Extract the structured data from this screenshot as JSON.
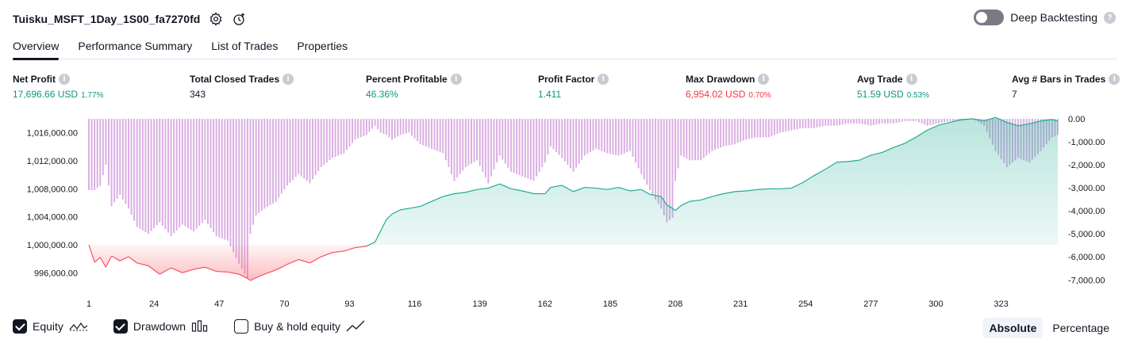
{
  "header": {
    "title": "Tuisku_MSFT_1Day_1S00_fa7270fd",
    "deep_backtesting_label": "Deep Backtesting"
  },
  "tabs": [
    {
      "label": "Overview",
      "active": true
    },
    {
      "label": "Performance Summary",
      "active": false
    },
    {
      "label": "List of Trades",
      "active": false
    },
    {
      "label": "Properties",
      "active": false
    }
  ],
  "metrics": {
    "net_profit": {
      "label": "Net Profit",
      "value": "17,696.66 USD",
      "pct": "1.77%"
    },
    "total_closed_trades": {
      "label": "Total Closed Trades",
      "value": "343"
    },
    "percent_profitable": {
      "label": "Percent Profitable",
      "value": "46.36%"
    },
    "profit_factor": {
      "label": "Profit Factor",
      "value": "1.411"
    },
    "max_drawdown": {
      "label": "Max Drawdown",
      "value": "6,954.02 USD",
      "pct": "0.70%"
    },
    "avg_trade": {
      "label": "Avg Trade",
      "value": "51.59 USD",
      "pct": "0.53%"
    },
    "avg_bars": {
      "label": "Avg # Bars in Trades",
      "value": "7"
    }
  },
  "legend": {
    "equity_label": "Equity",
    "drawdown_label": "Drawdown",
    "buy_hold_label": "Buy & hold equity",
    "equity_checked": true,
    "drawdown_checked": true,
    "buy_hold_checked": false
  },
  "modes": {
    "absolute": "Absolute",
    "percentage": "Percentage",
    "active": "absolute"
  },
  "colors": {
    "profit_line": "#22ab94",
    "loss_line": "#f7525f",
    "profit_fill": "#22ab94",
    "loss_fill": "#f7525f",
    "drawdown_bar": "#ce93d8",
    "positive_text": "#089981",
    "negative_text": "#f23645"
  },
  "chart_data": {
    "type": "area",
    "x_ticks": [
      1,
      24,
      47,
      70,
      93,
      116,
      139,
      162,
      185,
      208,
      231,
      254,
      277,
      300,
      323
    ],
    "left_axis_ticks": [
      "1,016,000.00",
      "1,012,000.00",
      "1,008,000.00",
      "1,004,000.00",
      "1,000,000.00",
      "996,000.00"
    ],
    "right_axis_ticks": [
      "0.00",
      "-1,000.00",
      "-2,000.00",
      "-3,000.00",
      "-4,000.00",
      "-5,000.00",
      "-6,000.00",
      "-7,000.00"
    ],
    "equity_ylim": [
      994000,
      1018000
    ],
    "drawdown_ylim": [
      -7300,
      0
    ],
    "baseline": 1000000,
    "equity_x": [
      1,
      3,
      5,
      7,
      9,
      12,
      15,
      18,
      22,
      26,
      30,
      34,
      38,
      42,
      46,
      50,
      54,
      57,
      58,
      60,
      63,
      67,
      71,
      75,
      79,
      83,
      87,
      91,
      95,
      99,
      102,
      104,
      106,
      108,
      111,
      114,
      118,
      122,
      126,
      130,
      134,
      138,
      142,
      146,
      150,
      154,
      158,
      162,
      164,
      168,
      172,
      176,
      180,
      184,
      188,
      192,
      196,
      199,
      203,
      205,
      207,
      208,
      210,
      213,
      217,
      221,
      225,
      229,
      233,
      237,
      241,
      245,
      249,
      253,
      257,
      261,
      265,
      269,
      273,
      277,
      281,
      285,
      289,
      293,
      297,
      301,
      305,
      309,
      313,
      317,
      321,
      325,
      329,
      333,
      337,
      341,
      343
    ],
    "equity_y": [
      1000000,
      997500,
      998200,
      996800,
      998400,
      997700,
      998300,
      997400,
      997000,
      995800,
      996700,
      996000,
      996500,
      996800,
      996200,
      996100,
      995800,
      995200,
      994900,
      995300,
      995800,
      996400,
      997200,
      997900,
      997400,
      998300,
      998900,
      999100,
      999600,
      999800,
      1000400,
      1002000,
      1003600,
      1004400,
      1005000,
      1005200,
      1005500,
      1006200,
      1006900,
      1007300,
      1007500,
      1007900,
      1008100,
      1008700,
      1008000,
      1007700,
      1007300,
      1007300,
      1008200,
      1008500,
      1007600,
      1008200,
      1008100,
      1007900,
      1008200,
      1007700,
      1007900,
      1007200,
      1006900,
      1005700,
      1005200,
      1004900,
      1005600,
      1006200,
      1006400,
      1006900,
      1007300,
      1007600,
      1007700,
      1007900,
      1008000,
      1008000,
      1008100,
      1008900,
      1009900,
      1010800,
      1011800,
      1011900,
      1012100,
      1012800,
      1013200,
      1013900,
      1014500,
      1015400,
      1016400,
      1017100,
      1017500,
      1017900,
      1018000,
      1017700,
      1018200,
      1017500,
      1017000,
      1017300,
      1017700,
      1017900,
      1017700
    ],
    "drawdown_x": [
      1,
      3,
      5,
      7,
      9,
      12,
      15,
      18,
      22,
      26,
      30,
      34,
      38,
      42,
      46,
      50,
      54,
      57,
      58,
      60,
      63,
      67,
      71,
      75,
      79,
      83,
      87,
      91,
      95,
      99,
      102,
      104,
      106,
      108,
      111,
      114,
      118,
      122,
      126,
      130,
      134,
      138,
      142,
      146,
      150,
      154,
      158,
      162,
      164,
      168,
      172,
      176,
      180,
      184,
      188,
      192,
      196,
      199,
      203,
      205,
      207,
      208,
      210,
      213,
      217,
      221,
      225,
      229,
      233,
      237,
      241,
      245,
      249,
      253,
      257,
      261,
      265,
      269,
      273,
      277,
      281,
      285,
      289,
      293,
      297,
      301,
      305,
      309,
      313,
      317,
      321,
      325,
      329,
      333,
      337,
      341,
      343
    ],
    "drawdown_y": [
      -3100,
      -3100,
      -2900,
      -2000,
      -3800,
      -3300,
      -3900,
      -4700,
      -5000,
      -4500,
      -5100,
      -4600,
      -4900,
      -4400,
      -5100,
      -5300,
      -6300,
      -6954,
      -5000,
      -4200,
      -3900,
      -3600,
      -2900,
      -2400,
      -2800,
      -2100,
      -1700,
      -1500,
      -900,
      -700,
      -300,
      -600,
      -700,
      -900,
      -700,
      -600,
      -1100,
      -1300,
      -1500,
      -2700,
      -2100,
      -1800,
      -2800,
      -1600,
      -2300,
      -2500,
      -2700,
      -1900,
      -1200,
      -1700,
      -2300,
      -1600,
      -1300,
      -1500,
      -1600,
      -1400,
      -2400,
      -3100,
      -3900,
      -4500,
      -4300,
      -2700,
      -1600,
      -1800,
      -1800,
      -1400,
      -1200,
      -1100,
      -900,
      -800,
      -800,
      -600,
      -500,
      -400,
      -400,
      -300,
      -300,
      -200,
      -200,
      -300,
      -200,
      -200,
      -100,
      -100,
      -300,
      -200,
      -100,
      -100,
      0,
      -300,
      -1400,
      -2100,
      -1700,
      -1900,
      -1400,
      -800,
      -700
    ]
  }
}
